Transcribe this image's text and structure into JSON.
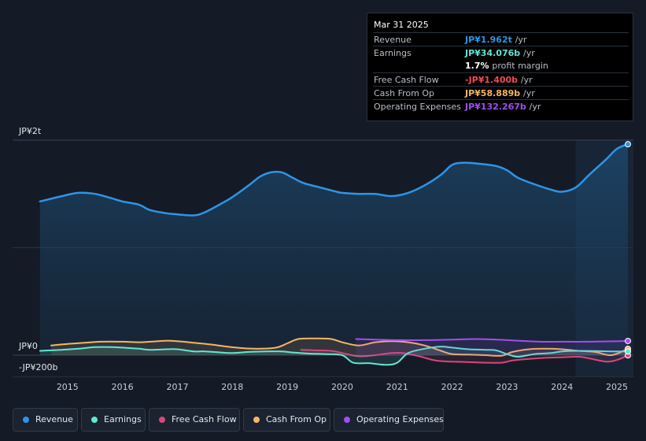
{
  "tooltip": {
    "date": "Mar 31 2025",
    "rows": [
      {
        "label": "Revenue",
        "value": "JP¥1.962t",
        "unit": "/yr",
        "color": "#2d95e8"
      },
      {
        "label": "Earnings",
        "value": "JP¥34.076b",
        "unit": "/yr",
        "color": "#62e6d2"
      },
      {
        "label": "",
        "value": "1.7%",
        "unit": "profit margin",
        "color": "#ffffff"
      },
      {
        "label": "Free Cash Flow",
        "value": "-JP¥1.400b",
        "unit": "/yr",
        "color": "#f04a55"
      },
      {
        "label": "Cash From Op",
        "value": "JP¥58.889b",
        "unit": "/yr",
        "color": "#f5b564"
      },
      {
        "label": "Operating Expenses",
        "value": "JP¥132.267b",
        "unit": "/yr",
        "color": "#a24ef0"
      }
    ]
  },
  "y_axis": {
    "top_label": "JP¥2t",
    "zero_label": "JP¥0",
    "bottom_label": "-JP¥200b"
  },
  "legend": [
    {
      "label": "Revenue",
      "color": "#2d95e8"
    },
    {
      "label": "Earnings",
      "color": "#62e6d2"
    },
    {
      "label": "Free Cash Flow",
      "color": "#d6487c"
    },
    {
      "label": "Cash From Op",
      "color": "#f5b564"
    },
    {
      "label": "Operating Expenses",
      "color": "#a24ef0"
    }
  ],
  "chart_data": {
    "type": "area",
    "title": "",
    "xlabel": "",
    "ylabel": "",
    "units": "JP¥ billions",
    "ylim": [
      -200,
      2000
    ],
    "xlim": [
      2014.0,
      2025.3
    ],
    "x_ticks": [
      "2015",
      "2016",
      "2017",
      "2018",
      "2019",
      "2020",
      "2021",
      "2022",
      "2023",
      "2024",
      "2025"
    ],
    "highlight_start": 2024.25,
    "series": [
      {
        "name": "Revenue",
        "color": "#2d95e8",
        "fill": true,
        "x": [
          2014.5,
          2014.9,
          2015.2,
          2015.5,
          2015.8,
          2016.0,
          2016.3,
          2016.5,
          2016.8,
          2017.0,
          2017.3,
          2017.5,
          2017.8,
          2018.0,
          2018.3,
          2018.5,
          2018.7,
          2018.9,
          2019.1,
          2019.3,
          2019.6,
          2019.9,
          2020.0,
          2020.3,
          2020.6,
          2020.9,
          2021.2,
          2021.5,
          2021.8,
          2022.0,
          2022.2,
          2022.5,
          2022.8,
          2023.0,
          2023.2,
          2023.5,
          2023.8,
          2024.0,
          2024.25,
          2024.5,
          2024.8,
          2025.0,
          2025.2
        ],
        "values": [
          1430,
          1480,
          1510,
          1500,
          1460,
          1430,
          1400,
          1350,
          1320,
          1310,
          1300,
          1330,
          1410,
          1470,
          1580,
          1660,
          1700,
          1700,
          1650,
          1600,
          1560,
          1520,
          1510,
          1500,
          1500,
          1480,
          1510,
          1580,
          1680,
          1770,
          1790,
          1780,
          1760,
          1720,
          1650,
          1590,
          1540,
          1520,
          1560,
          1680,
          1820,
          1920,
          1962
        ]
      },
      {
        "name": "Earnings",
        "color": "#62e6d2",
        "x": [
          2014.5,
          2014.9,
          2015.2,
          2015.5,
          2015.8,
          2016.0,
          2016.3,
          2016.5,
          2016.8,
          2017.0,
          2017.3,
          2017.5,
          2017.8,
          2018.0,
          2018.3,
          2018.6,
          2018.9,
          2019.1,
          2019.4,
          2019.7,
          2020.0,
          2020.2,
          2020.5,
          2020.8,
          2021.0,
          2021.2,
          2021.5,
          2021.8,
          2022.0,
          2022.3,
          2022.6,
          2022.8,
          2023.0,
          2023.2,
          2023.5,
          2023.8,
          2024.0,
          2024.3,
          2024.6,
          2024.9,
          2025.2
        ],
        "values": [
          40,
          50,
          60,
          75,
          75,
          70,
          60,
          50,
          55,
          55,
          35,
          35,
          25,
          20,
          30,
          35,
          35,
          25,
          15,
          10,
          0,
          -70,
          -75,
          -90,
          -70,
          20,
          60,
          80,
          70,
          55,
          50,
          45,
          10,
          -15,
          10,
          20,
          35,
          40,
          38,
          35,
          34
        ]
      },
      {
        "name": "Free Cash Flow",
        "color": "#d6487c",
        "x": [
          2019.25,
          2019.5,
          2019.8,
          2020.0,
          2020.3,
          2020.6,
          2020.9,
          2021.1,
          2021.4,
          2021.7,
          2022.0,
          2022.3,
          2022.6,
          2022.9,
          2023.1,
          2023.4,
          2023.7,
          2024.0,
          2024.3,
          2024.5,
          2024.8,
          2025.0,
          2025.2
        ],
        "values": [
          50,
          45,
          40,
          20,
          -10,
          0,
          20,
          20,
          -10,
          -50,
          -60,
          -65,
          -70,
          -70,
          -50,
          -35,
          -25,
          -20,
          -15,
          -30,
          -60,
          -45,
          -1.4
        ]
      },
      {
        "name": "Cash From Op",
        "color": "#f5b564",
        "x": [
          2014.7,
          2015.0,
          2015.3,
          2015.6,
          2016.0,
          2016.3,
          2016.5,
          2016.8,
          2017.0,
          2017.3,
          2017.6,
          2017.9,
          2018.2,
          2018.5,
          2018.8,
          2019.0,
          2019.2,
          2019.5,
          2019.8,
          2020.0,
          2020.3,
          2020.6,
          2020.9,
          2021.2,
          2021.5,
          2021.8,
          2022.0,
          2022.3,
          2022.6,
          2022.9,
          2023.1,
          2023.4,
          2023.7,
          2024.0,
          2024.3,
          2024.6,
          2024.9,
          2025.2
        ],
        "values": [
          90,
          105,
          115,
          125,
          125,
          120,
          125,
          135,
          130,
          115,
          100,
          80,
          65,
          60,
          70,
          110,
          150,
          155,
          150,
          120,
          90,
          120,
          130,
          120,
          90,
          40,
          10,
          5,
          0,
          -5,
          30,
          55,
          60,
          55,
          40,
          30,
          0,
          59
        ]
      },
      {
        "name": "Operating Expenses",
        "color": "#a24ef0",
        "x": [
          2020.25,
          2020.6,
          2021.0,
          2021.5,
          2022.0,
          2022.4,
          2022.8,
          2023.2,
          2023.6,
          2024.0,
          2024.4,
          2024.8,
          2025.2
        ],
        "values": [
          150,
          145,
          140,
          140,
          145,
          150,
          145,
          135,
          125,
          125,
          125,
          128,
          132
        ]
      }
    ]
  }
}
